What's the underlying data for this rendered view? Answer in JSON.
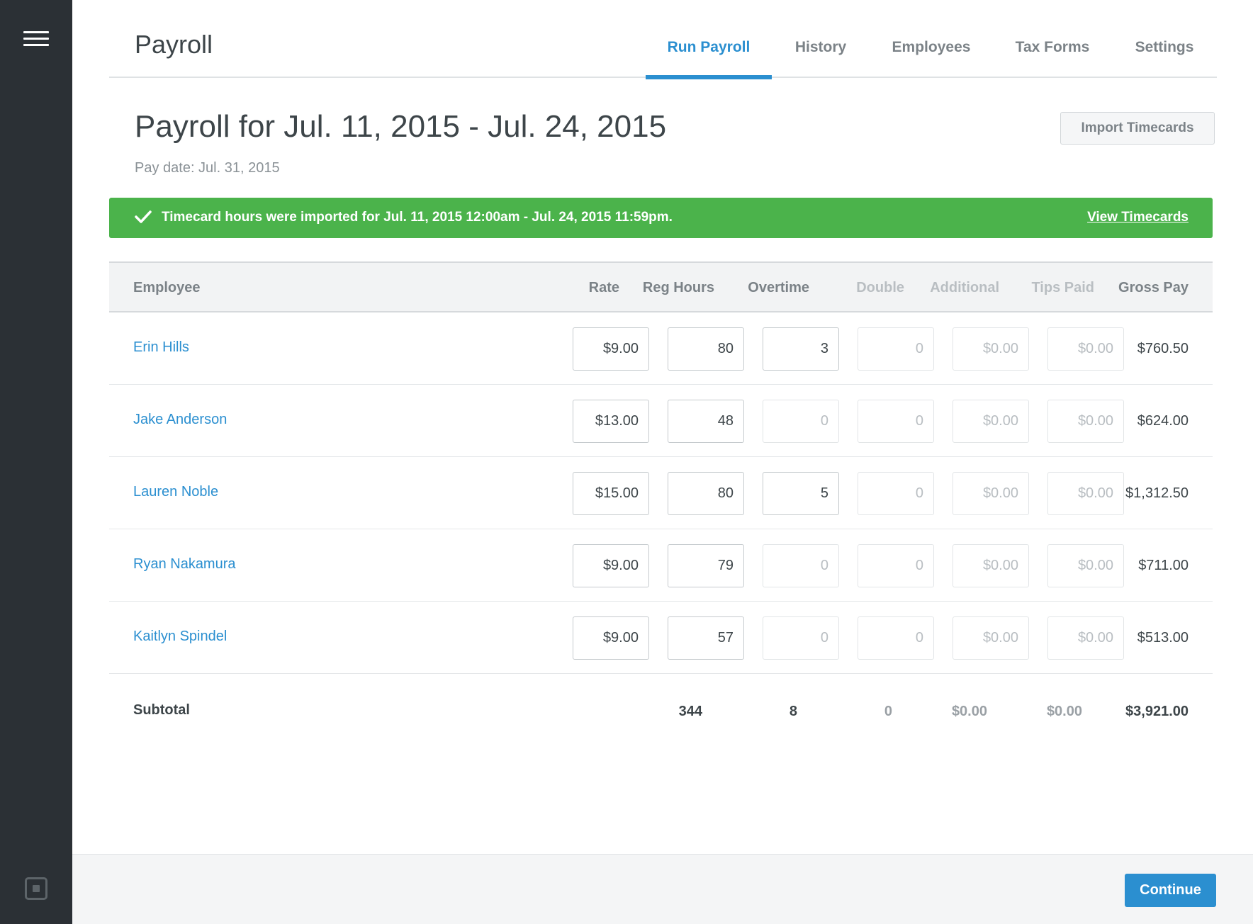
{
  "app": {
    "title": "Payroll"
  },
  "tabs": [
    {
      "label": "Run Payroll",
      "active": true
    },
    {
      "label": "History"
    },
    {
      "label": "Employees"
    },
    {
      "label": "Tax Forms"
    },
    {
      "label": "Settings"
    }
  ],
  "page": {
    "title": "Payroll for Jul. 11, 2015 - Jul. 24, 2015",
    "pay_date": "Pay date: Jul. 31, 2015",
    "import_button": "Import Timecards"
  },
  "banner": {
    "message": "Timecard hours were imported for Jul. 11, 2015 12:00am - Jul. 24, 2015 11:59pm.",
    "link": "View Timecards",
    "color": "#4bb34b"
  },
  "table": {
    "headers": {
      "employee": "Employee",
      "rate": "Rate",
      "reg_hours": "Reg Hours",
      "overtime": "Overtime",
      "double": "Double",
      "additional": "Additional",
      "tips_paid": "Tips Paid",
      "gross_pay": "Gross Pay"
    },
    "rows": [
      {
        "name": "Erin Hills",
        "rate": "$9.00",
        "reg_hours": "80",
        "overtime": "3",
        "double": "0",
        "additional": "$0.00",
        "tips_paid": "$0.00",
        "gross_pay": "$760.50"
      },
      {
        "name": "Jake Anderson",
        "rate": "$13.00",
        "reg_hours": "48",
        "overtime": "0",
        "double": "0",
        "additional": "$0.00",
        "tips_paid": "$0.00",
        "gross_pay": "$624.00"
      },
      {
        "name": "Lauren Noble",
        "rate": "$15.00",
        "reg_hours": "80",
        "overtime": "5",
        "double": "0",
        "additional": "$0.00",
        "tips_paid": "$0.00",
        "gross_pay": "$1,312.50"
      },
      {
        "name": "Ryan Nakamura",
        "rate": "$9.00",
        "reg_hours": "79",
        "overtime": "0",
        "double": "0",
        "additional": "$0.00",
        "tips_paid": "$0.00",
        "gross_pay": "$711.00"
      },
      {
        "name": "Kaitlyn Spindel",
        "rate": "$9.00",
        "reg_hours": "57",
        "overtime": "0",
        "double": "0",
        "additional": "$0.00",
        "tips_paid": "$0.00",
        "gross_pay": "$513.00"
      }
    ],
    "subtotal": {
      "label": "Subtotal",
      "reg_hours": "344",
      "overtime": "8",
      "double": "0",
      "additional": "$0.00",
      "tips_paid": "$0.00",
      "gross_pay": "$3,921.00"
    }
  },
  "footer": {
    "continue_button": "Continue"
  },
  "icons": {
    "menu": "hamburger-menu-icon",
    "logo": "square-logo-icon",
    "banner": "checkmark-icon"
  },
  "colors": {
    "accent": "#2b8fd0",
    "sidebar": "#2b3035",
    "success": "#4bb34b"
  }
}
